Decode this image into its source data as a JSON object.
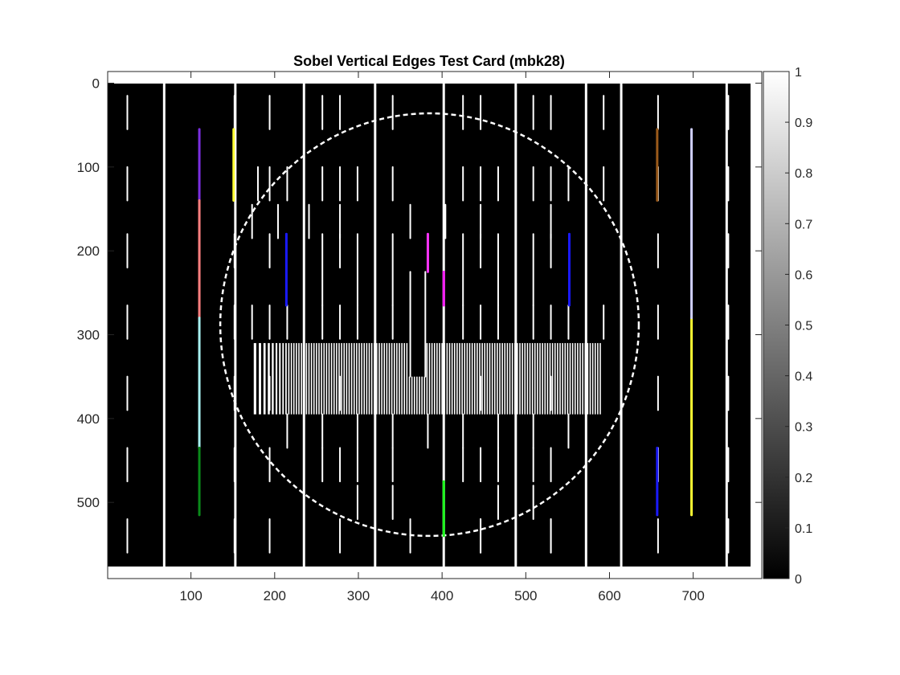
{
  "chart_data": {
    "type": "heatmap",
    "title": "Sobel Vertical Edges Test Card (mbk28)",
    "xlabel": "",
    "ylabel": "",
    "image_size": {
      "width": 768,
      "height": 576
    },
    "xlim": [
      0.5,
      768.5
    ],
    "ylim": [
      0.5,
      576.5
    ],
    "y_direction": "reverse",
    "x_ticks": [
      100,
      200,
      300,
      400,
      500,
      600,
      700
    ],
    "y_ticks": [
      0,
      100,
      200,
      300,
      400,
      500
    ],
    "colorbar": {
      "range": [
        0,
        1
      ],
      "ticks": [
        0,
        0.1,
        0.2,
        0.3,
        0.4,
        0.5,
        0.6,
        0.7,
        0.8,
        0.9,
        1
      ],
      "colormap": "gray"
    },
    "background_value": 0,
    "edges_description": "Sparse vertical edge responses: bright vertical bars and dashes, a circle outline, and a central frequency grating from about x=175 to x=590, y=310 to y=395",
    "grating": {
      "x_range": [
        175,
        590
      ],
      "y_range": [
        310,
        395
      ],
      "notch": {
        "x_range": [
          360,
          380
        ],
        "y_top": 350
      }
    },
    "colored_edges": [
      {
        "x": 110,
        "y1": 55,
        "y2": 140,
        "color": "#7b2fe0"
      },
      {
        "x": 110,
        "y1": 140,
        "y2": 280,
        "color": "#ff7f7f"
      },
      {
        "x": 110,
        "y1": 280,
        "y2": 435,
        "color": "#a8f0f0"
      },
      {
        "x": 110,
        "y1": 435,
        "y2": 515,
        "color": "#0a8a1a"
      },
      {
        "x": 151,
        "y1": 55,
        "y2": 140,
        "color": "#ffff33"
      },
      {
        "x": 214,
        "y1": 180,
        "y2": 265,
        "color": "#1a1aff"
      },
      {
        "x": 383,
        "y1": 180,
        "y2": 225,
        "color": "#ff33ff"
      },
      {
        "x": 402,
        "y1": 225,
        "y2": 265,
        "color": "#ff1aff"
      },
      {
        "x": 552,
        "y1": 180,
        "y2": 265,
        "color": "#1a1aff"
      },
      {
        "x": 402,
        "y1": 475,
        "y2": 540,
        "color": "#1aff1a"
      },
      {
        "x": 657,
        "y1": 55,
        "y2": 140,
        "color": "#9a5a1a"
      },
      {
        "x": 657,
        "y1": 435,
        "y2": 515,
        "color": "#1a1aff"
      },
      {
        "x": 698,
        "y1": 280,
        "y2": 515,
        "color": "#ffff33"
      },
      {
        "x": 698,
        "y1": 55,
        "y2": 280,
        "color": "#d0d0ff"
      }
    ]
  }
}
